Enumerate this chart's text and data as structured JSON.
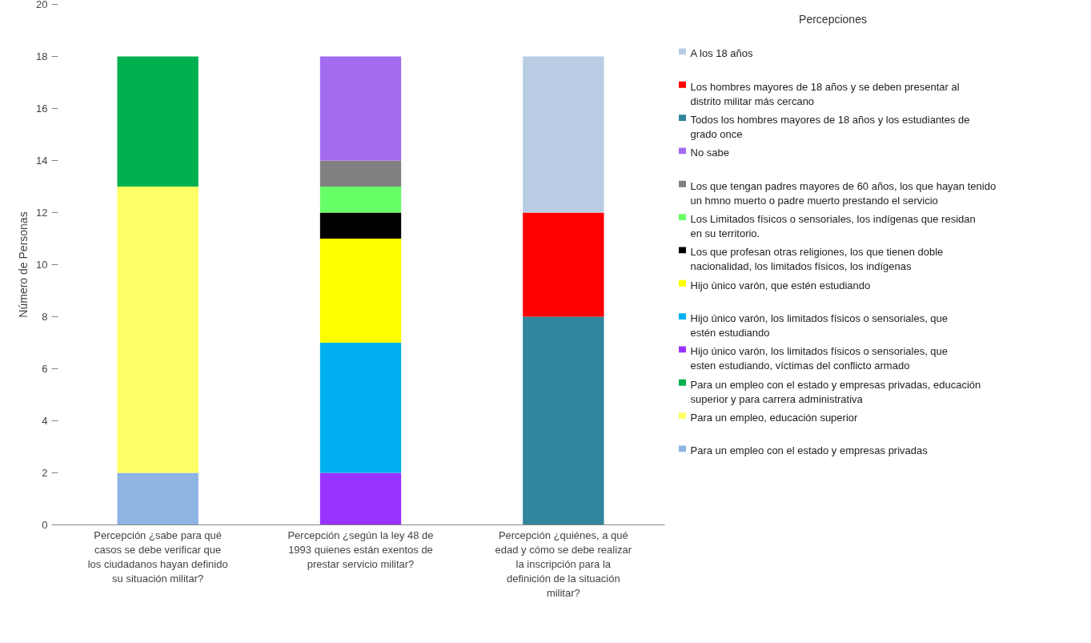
{
  "chart_data": {
    "type": "bar",
    "stacked": true,
    "ylabel": "Número de Personas",
    "legend_title": "Percepciones",
    "legend": "right",
    "grid": false,
    "categories": [
      "Percepción ¿sabe para qué casos se debe verificar que los ciudadanos hayan definido su situación militar?",
      "Percepción ¿según la ley 48 de 1993 quienes están exentos de prestar servicio militar?",
      "Percepción ¿quiénes, a qué edad y cómo se debe realizar la inscripción para la definición de la situación militar?"
    ],
    "ylim": [
      0,
      20
    ],
    "yticks": [
      0,
      2,
      4,
      6,
      8,
      10,
      12,
      14,
      16,
      18,
      20
    ],
    "series": [
      {
        "name": "Para un empleo con el estado y empresas privadas",
        "color": "#8eb4e3",
        "values": [
          2,
          0,
          0
        ]
      },
      {
        "name": "Para un empleo, educación superior",
        "color": "#ffff66",
        "values": [
          11,
          0,
          0
        ]
      },
      {
        "name": "Para un empleo con el estado y empresas privadas, educación superior y para carrera administrativa",
        "color": "#00b050",
        "values": [
          5,
          0,
          0
        ]
      },
      {
        "name": "Hijo único varón, los limitados físicos o sensoriales, que esten estudiando, víctimas del conflicto armado",
        "color": "#9933ff",
        "values": [
          0,
          2,
          0
        ]
      },
      {
        "name": "Hijo único varón, los limitados físicos o sensoriales, que estén estudiando",
        "color": "#00b0f0",
        "values": [
          0,
          5,
          0
        ]
      },
      {
        "name": "Hijo único varón, que estén estudiando",
        "color": "#ffff00",
        "values": [
          0,
          4,
          0
        ]
      },
      {
        "name": "Los que profesan otras religiones, los que tienen doble nacionalidad, los limitados físicos, los indígenas",
        "color": "#000000",
        "values": [
          0,
          1,
          0
        ]
      },
      {
        "name": "Los Limitados físicos o sensoriales, los indígenas que residan en su territorio.",
        "color": "#66ff66",
        "values": [
          0,
          1,
          0
        ]
      },
      {
        "name": "Los que tengan padres mayores de 60 años, los que hayan tenido un hmno muerto o padre muerto prestando el servicio",
        "color": "#808080",
        "values": [
          0,
          1,
          0
        ]
      },
      {
        "name": "No sabe",
        "color": "#a36bf0",
        "values": [
          0,
          4,
          0
        ]
      },
      {
        "name": "Todos los hombres mayores de 18 años y los estudiantes de grado once",
        "color": "#31859c",
        "values": [
          0,
          0,
          8
        ]
      },
      {
        "name": "Los hombres mayores de 18 años y se deben presentar al distrito militar más cercano",
        "color": "#ff0000",
        "values": [
          0,
          0,
          4
        ]
      },
      {
        "name": "A los 18 años",
        "color": "#b9cde5",
        "values": [
          0,
          0,
          6
        ]
      }
    ]
  }
}
